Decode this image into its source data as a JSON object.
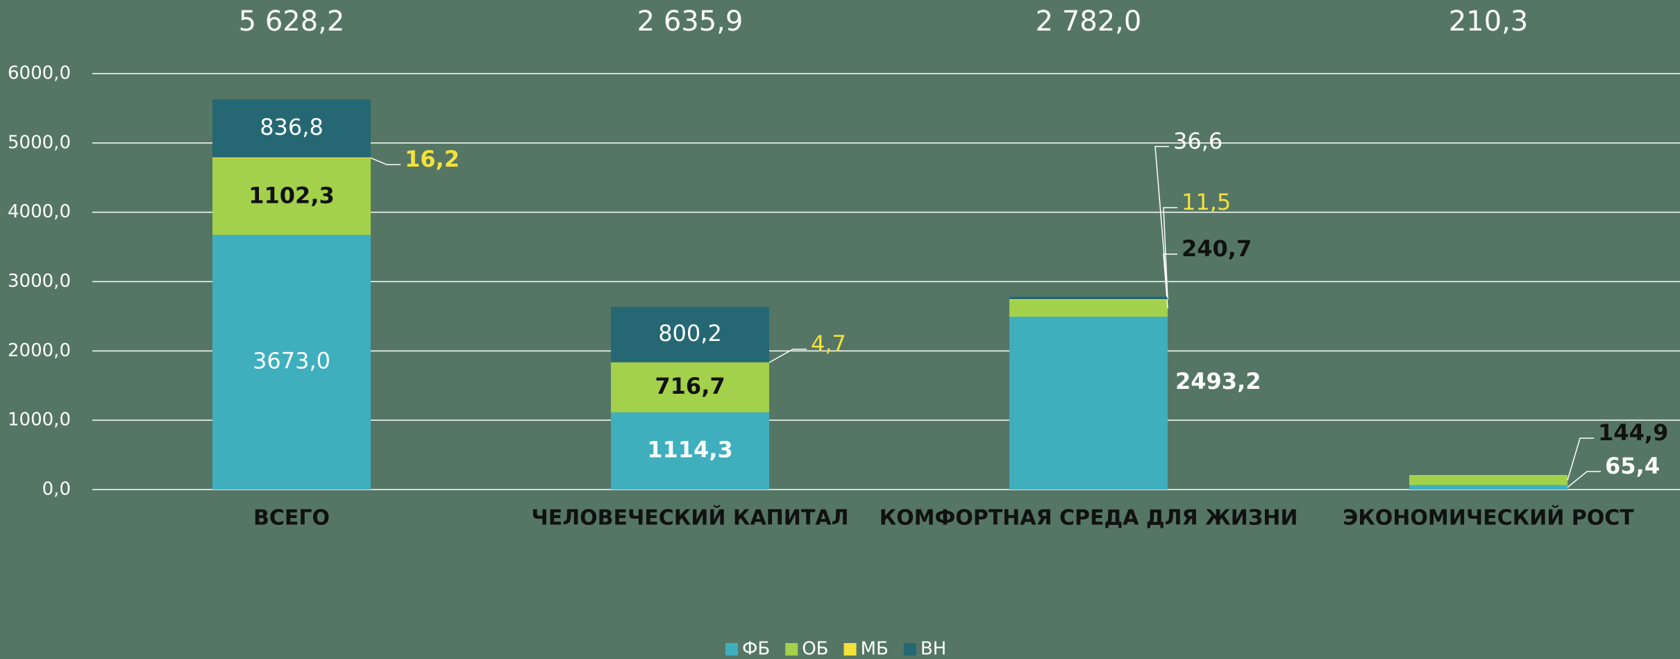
{
  "chart_data": {
    "type": "stacked_bar",
    "categories": [
      "ВСЕГО",
      "ЧЕЛОВЕЧЕСКИЙ КАПИТАЛ",
      "КОМФОРТНАЯ СРЕДА ДЛЯ ЖИЗНИ",
      "ЭКОНОМИЧЕСКИЙ РОСТ"
    ],
    "totals": [
      5628.2,
      2635.9,
      2782.0,
      210.3
    ],
    "total_labels": [
      "5 628,2",
      "2 635,9",
      "2 782,0",
      "210,3"
    ],
    "series": [
      {
        "name": "ФБ",
        "color": "#3fafbe",
        "values": [
          3673.0,
          1114.3,
          2493.2,
          65.4
        ],
        "value_labels": [
          "3673,0",
          "1114,3",
          "2493,2",
          "65,4"
        ]
      },
      {
        "name": "ОБ",
        "color": "#a3d14b",
        "values": [
          1102.3,
          716.7,
          240.7,
          144.9
        ],
        "value_labels": [
          "1102,3",
          "716,7",
          "240,7",
          "144,9"
        ]
      },
      {
        "name": "МБ",
        "color": "#f3e23a",
        "values": [
          16.2,
          4.7,
          11.5,
          null
        ],
        "value_labels": [
          "16,2",
          "4,7",
          "11,5",
          null
        ]
      },
      {
        "name": "ВН",
        "color": "#256873",
        "values": [
          836.8,
          800.2,
          36.6,
          null
        ],
        "value_labels": [
          "836,8",
          "800,2",
          "36,6",
          null
        ]
      }
    ],
    "ylim": [
      0,
      6000
    ],
    "yticks": [
      {
        "value": 0,
        "label": "0,0"
      },
      {
        "value": 1000,
        "label": "1000,0"
      },
      {
        "value": 2000,
        "label": "2000,0"
      },
      {
        "value": 3000,
        "label": "3000,0"
      },
      {
        "value": 4000,
        "label": "4000,0"
      },
      {
        "value": 5000,
        "label": "5000,0"
      },
      {
        "value": 6000,
        "label": "6000,0"
      }
    ],
    "grid": true,
    "legend": "bottom"
  }
}
